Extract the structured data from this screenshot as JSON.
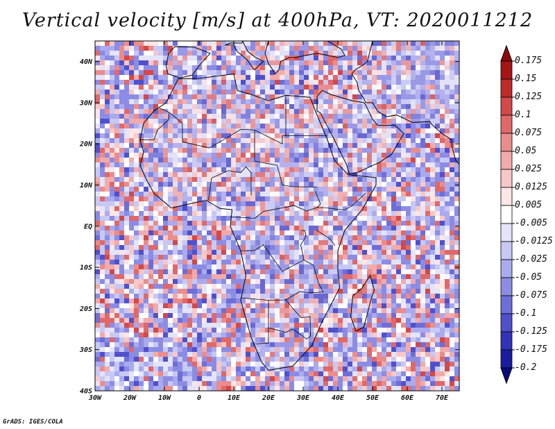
{
  "title": "Vertical velocity [m/s] at 400hPa, VT: 2020011212",
  "credit": "GrADS: IGES/COLA",
  "map": {
    "lon_range": [
      -30,
      75
    ],
    "lat_range": [
      -40,
      45
    ],
    "lon_labels": [
      "30W",
      "20W",
      "10W",
      "0",
      "10E",
      "20E",
      "30E",
      "40E",
      "50E",
      "60E",
      "70E"
    ],
    "lon_values": [
      -30,
      -20,
      -10,
      0,
      10,
      20,
      30,
      40,
      50,
      60,
      70
    ],
    "lat_labels": [
      "40N",
      "30N",
      "20N",
      "10N",
      "EQ",
      "10S",
      "20S",
      "30S",
      "40S"
    ],
    "lat_values": [
      40,
      30,
      20,
      10,
      0,
      -10,
      -20,
      -30,
      -40
    ]
  },
  "colorbar": {
    "labels": [
      "0.175",
      "0.15",
      "0.125",
      "0.1",
      "0.075",
      "0.05",
      "0.025",
      "0.0125",
      "0.005",
      "-0.005",
      "-0.0125",
      "-0.025",
      "-0.05",
      "-0.075",
      "-0.1",
      "-0.125",
      "-0.175",
      "-0.2"
    ],
    "colors": [
      "#8c0a0a",
      "#a81414",
      "#c02a2a",
      "#d34848",
      "#e06868",
      "#eb8c8c",
      "#f2aaaa",
      "#f8c8c8",
      "#fde6e6",
      "#ffffff",
      "#e4e4fa",
      "#c8c8f4",
      "#aaaaee",
      "#8c8ce4",
      "#6e6ed8",
      "#5050cc",
      "#3232b8",
      "#1c1ca0",
      "#0a0a80"
    ]
  },
  "colors": {
    "ocean_base": "#cfcff3",
    "land_base": "#dcd6ee",
    "coast": "#000000"
  }
}
